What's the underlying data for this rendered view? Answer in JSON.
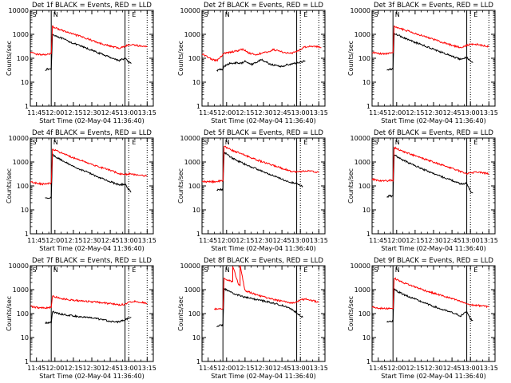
{
  "figure": {
    "x_tick_labels": [
      "11:45",
      "12:00",
      "12:15",
      "12:30",
      "12:45",
      "13:00",
      "13:15"
    ],
    "y_tick_labels": [
      "1",
      "10",
      "100",
      "1000",
      "10000"
    ],
    "ylabel": "Counts/sec",
    "xlabel": "Start Time (02-May-04 11:36:40)",
    "colors": {
      "events": "#000000",
      "lld": "#ff0000"
    }
  },
  "chart_data": [
    {
      "type": "line",
      "title": "Det 1f BLACK = Events, RED = LLD",
      "x_range": [
        "11:40",
        "13:20"
      ],
      "ylim": [
        1,
        10000
      ],
      "yscale": "log",
      "markers": {
        "solid": [
          "11:57",
          "12:57"
        ],
        "dotted": [
          "13:00",
          "13:15"
        ],
        "labels": {
          "S": "11:41",
          "N": "11:58",
          "E": "13:02"
        }
      },
      "series": [
        {
          "name": "BLACK = Events",
          "x": [
            "11:52",
            "11:54",
            "11:57",
            "11:58",
            "12:05",
            "12:15",
            "12:25",
            "12:35",
            "12:45",
            "12:52",
            "12:57",
            "13:00",
            "13:02"
          ],
          "y": [
            33,
            35,
            35,
            1000,
            700,
            420,
            270,
            170,
            110,
            80,
            100,
            70,
            60
          ]
        },
        {
          "name": "RED = LLD",
          "x": [
            "11:40",
            "11:45",
            "11:50",
            "11:55",
            "11:57",
            "11:58",
            "12:05",
            "12:15",
            "12:25",
            "12:35",
            "12:45",
            "12:52",
            "12:57",
            "13:00",
            "13:05",
            "13:10",
            "13:15"
          ],
          "y": [
            170,
            150,
            140,
            150,
            150,
            2100,
            1500,
            1000,
            700,
            450,
            320,
            260,
            320,
            360,
            360,
            320,
            300
          ]
        }
      ]
    },
    {
      "type": "line",
      "title": "Det 2f BLACK = Events, RED = LLD",
      "x_range": [
        "11:40",
        "13:20"
      ],
      "ylim": [
        1,
        10000
      ],
      "yscale": "log",
      "markers": {
        "solid": [
          "11:57",
          "12:57"
        ],
        "dotted": [
          "13:00",
          "13:15"
        ],
        "labels": {
          "S": "11:41",
          "N": "11:58",
          "E": "13:02"
        }
      },
      "series": [
        {
          "name": "BLACK = Events",
          "x": [
            "11:52",
            "11:54",
            "11:57",
            "11:58",
            "12:02",
            "12:08",
            "12:12",
            "12:15",
            "12:20",
            "12:25",
            "12:28",
            "12:32",
            "12:36",
            "12:40",
            "12:45",
            "12:50",
            "12:55",
            "13:00",
            "13:04"
          ],
          "y": [
            30,
            35,
            35,
            45,
            60,
            65,
            60,
            80,
            55,
            70,
            90,
            70,
            55,
            50,
            45,
            55,
            60,
            70,
            75
          ]
        },
        {
          "name": "RED = LLD",
          "x": [
            "11:40",
            "11:44",
            "11:48",
            "11:52",
            "11:56",
            "11:58",
            "12:03",
            "12:08",
            "12:13",
            "12:18",
            "12:23",
            "12:28",
            "12:33",
            "12:38",
            "12:43",
            "12:48",
            "12:53",
            "12:58",
            "13:03",
            "13:08",
            "13:13",
            "13:17"
          ],
          "y": [
            150,
            120,
            90,
            80,
            120,
            160,
            180,
            200,
            240,
            170,
            140,
            160,
            180,
            230,
            200,
            170,
            160,
            200,
            290,
            320,
            310,
            280
          ]
        }
      ]
    },
    {
      "type": "line",
      "title": "Det 3f BLACK = Events, RED = LLD",
      "x_range": [
        "11:40",
        "13:20"
      ],
      "ylim": [
        1,
        10000
      ],
      "yscale": "log",
      "markers": {
        "solid": [
          "11:57",
          "12:57"
        ],
        "dotted": [
          "13:00",
          "13:15"
        ],
        "labels": {
          "S": "11:41",
          "N": "11:58",
          "E": "13:02"
        }
      },
      "series": [
        {
          "name": "BLACK = Events",
          "x": [
            "11:52",
            "11:54",
            "11:57",
            "11:58",
            "12:05",
            "12:15",
            "12:25",
            "12:35",
            "12:45",
            "12:52",
            "12:57",
            "13:00",
            "13:02"
          ],
          "y": [
            33,
            35,
            35,
            1100,
            750,
            460,
            300,
            190,
            120,
            90,
            110,
            75,
            65
          ]
        },
        {
          "name": "RED = LLD",
          "x": [
            "11:40",
            "11:45",
            "11:50",
            "11:55",
            "11:57",
            "11:58",
            "12:05",
            "12:15",
            "12:25",
            "12:35",
            "12:45",
            "12:52",
            "12:57",
            "13:00",
            "13:05",
            "13:10",
            "13:15"
          ],
          "y": [
            180,
            160,
            150,
            160,
            160,
            2200,
            1600,
            1100,
            750,
            500,
            350,
            280,
            340,
            380,
            380,
            340,
            310
          ]
        }
      ]
    },
    {
      "type": "line",
      "title": "Det 4f BLACK = Events, RED = LLD",
      "x_range": [
        "11:40",
        "13:20"
      ],
      "ylim": [
        1,
        10000
      ],
      "yscale": "log",
      "markers": {
        "solid": [
          "11:57",
          "12:57"
        ],
        "dotted": [
          "13:00",
          "13:15"
        ],
        "labels": {
          "S": "11:41",
          "N": "11:58",
          "E": "13:02"
        }
      },
      "series": [
        {
          "name": "BLACK = Events",
          "x": [
            "11:52",
            "11:54",
            "11:57",
            "11:58",
            "12:05",
            "12:15",
            "12:25",
            "12:35",
            "12:45",
            "12:52",
            "12:57",
            "13:00",
            "13:02"
          ],
          "y": [
            30,
            32,
            32,
            2000,
            1200,
            650,
            400,
            240,
            150,
            110,
            120,
            70,
            55
          ]
        },
        {
          "name": "RED = LLD",
          "x": [
            "11:40",
            "11:45",
            "11:50",
            "11:55",
            "11:57",
            "11:58",
            "12:05",
            "12:15",
            "12:25",
            "12:35",
            "12:45",
            "12:52",
            "12:57",
            "13:00",
            "13:05",
            "13:10",
            "13:15"
          ],
          "y": [
            150,
            130,
            120,
            130,
            130,
            3500,
            2400,
            1500,
            1000,
            650,
            450,
            330,
            300,
            320,
            300,
            280,
            260
          ]
        }
      ]
    },
    {
      "type": "line",
      "title": "Det 5f BLACK = Events, RED = LLD",
      "x_range": [
        "11:40",
        "13:20"
      ],
      "ylim": [
        1,
        10000
      ],
      "yscale": "log",
      "markers": {
        "solid": [
          "11:57",
          "12:57"
        ],
        "dotted": [
          "13:00",
          "13:15"
        ],
        "labels": {
          "S": "11:41",
          "N": "11:58",
          "E": "13:02"
        }
      },
      "series": [
        {
          "name": "BLACK = Events",
          "x": [
            "11:52",
            "11:54",
            "11:57",
            "11:58",
            "12:05",
            "12:15",
            "12:25",
            "12:35",
            "12:45",
            "12:52",
            "12:57",
            "13:00",
            "13:02"
          ],
          "y": [
            65,
            70,
            70,
            2500,
            1400,
            800,
            500,
            300,
            190,
            140,
            130,
            100,
            95
          ]
        },
        {
          "name": "RED = LLD",
          "x": [
            "11:40",
            "11:45",
            "11:50",
            "11:55",
            "11:57",
            "11:58",
            "12:05",
            "12:15",
            "12:25",
            "12:35",
            "12:45",
            "12:52",
            "12:57",
            "13:00",
            "13:05",
            "13:10",
            "13:15"
          ],
          "y": [
            150,
            150,
            150,
            160,
            160,
            4500,
            3000,
            1900,
            1200,
            800,
            550,
            420,
            380,
            400,
            430,
            400,
            360
          ]
        }
      ]
    },
    {
      "type": "line",
      "title": "Det 6f BLACK = Events, RED = LLD",
      "x_range": [
        "11:40",
        "13:20"
      ],
      "ylim": [
        1,
        10000
      ],
      "yscale": "log",
      "markers": {
        "solid": [
          "11:57",
          "12:57"
        ],
        "dotted": [
          "13:00",
          "13:15"
        ],
        "labels": {
          "S": "11:41",
          "N": "11:58",
          "E": "13:02"
        }
      },
      "series": [
        {
          "name": "BLACK = Events",
          "x": [
            "11:52",
            "11:54",
            "11:57",
            "11:58",
            "12:05",
            "12:15",
            "12:25",
            "12:35",
            "12:45",
            "12:52",
            "12:57",
            "13:00",
            "13:02"
          ],
          "y": [
            35,
            38,
            38,
            2000,
            1200,
            700,
            420,
            260,
            170,
            120,
            130,
            60,
            50
          ]
        },
        {
          "name": "RED = LLD",
          "x": [
            "11:40",
            "11:45",
            "11:50",
            "11:55",
            "11:57",
            "11:58",
            "12:05",
            "12:15",
            "12:25",
            "12:35",
            "12:45",
            "12:52",
            "12:57",
            "13:00",
            "13:05",
            "13:10",
            "13:15"
          ],
          "y": [
            190,
            170,
            160,
            170,
            170,
            4000,
            2800,
            1800,
            1200,
            800,
            550,
            400,
            330,
            350,
            380,
            360,
            320
          ]
        }
      ]
    },
    {
      "type": "line",
      "title": "Det 7f BLACK = Events, RED = LLD",
      "x_range": [
        "11:40",
        "13:20"
      ],
      "ylim": [
        1,
        10000
      ],
      "yscale": "log",
      "markers": {
        "solid": [
          "11:57",
          "12:57"
        ],
        "dotted": [
          "13:00",
          "13:15"
        ],
        "labels": {
          "S": "11:41",
          "N": "11:58",
          "E": "13:02"
        }
      },
      "series": [
        {
          "name": "BLACK = Events",
          "x": [
            "11:52",
            "11:54",
            "11:57",
            "11:58",
            "12:05",
            "12:15",
            "12:25",
            "12:35",
            "12:45",
            "12:52",
            "12:57",
            "13:00",
            "13:02"
          ],
          "y": [
            40,
            42,
            42,
            120,
            95,
            80,
            70,
            60,
            48,
            45,
            55,
            65,
            70
          ]
        },
        {
          "name": "RED = LLD",
          "x": [
            "11:40",
            "11:45",
            "11:50",
            "11:55",
            "11:57",
            "11:58",
            "12:05",
            "12:15",
            "12:25",
            "12:35",
            "12:45",
            "12:52",
            "12:57",
            "13:00",
            "13:05",
            "13:10",
            "13:15"
          ],
          "y": [
            200,
            180,
            170,
            180,
            180,
            550,
            420,
            360,
            330,
            300,
            260,
            230,
            250,
            300,
            330,
            300,
            260
          ]
        }
      ]
    },
    {
      "type": "line",
      "title": "Det 8f BLACK = Events, RED = LLD",
      "x_range": [
        "11:40",
        "13:20"
      ],
      "ylim": [
        1,
        10000
      ],
      "yscale": "log",
      "markers": {
        "solid": [
          "11:57",
          "12:57"
        ],
        "dotted": [
          "13:00",
          "13:15"
        ],
        "labels": {
          "S": "11:41",
          "N": "11:58",
          "E": "13:02"
        }
      },
      "series": [
        {
          "name": "BLACK = Events",
          "x": [
            "11:52",
            "11:54",
            "11:57",
            "11:58",
            "12:05",
            "12:15",
            "12:25",
            "12:35",
            "12:45",
            "12:52",
            "12:57",
            "13:00",
            "13:02"
          ],
          "y": [
            30,
            32,
            32,
            1100,
            700,
            480,
            380,
            300,
            220,
            160,
            110,
            80,
            70
          ]
        },
        {
          "name": "RED = LLD",
          "x": [
            "11:50",
            "11:55",
            "11:57",
            "11:58",
            "12:04",
            "12:05",
            "12:05",
            "12:10",
            "12:11",
            "12:11",
            "12:15",
            "12:25",
            "12:35",
            "12:45",
            "12:52",
            "12:57",
            "13:00",
            "13:05",
            "13:10",
            "13:15"
          ],
          "y": [
            160,
            160,
            160,
            2800,
            2200,
            2200,
            10000,
            1500,
            1500,
            10000,
            900,
            600,
            420,
            330,
            280,
            300,
            380,
            400,
            350,
            300
          ]
        }
      ]
    },
    {
      "type": "line",
      "title": "Det 9f BLACK = Events, RED = LLD",
      "x_range": [
        "11:40",
        "13:20"
      ],
      "ylim": [
        1,
        10000
      ],
      "yscale": "log",
      "markers": {
        "solid": [
          "11:57",
          "12:57"
        ],
        "dotted": [
          "13:00",
          "13:15"
        ],
        "labels": {
          "S": "11:41",
          "N": "11:58",
          "E": "13:02"
        }
      },
      "series": [
        {
          "name": "BLACK = Events",
          "x": [
            "11:52",
            "11:54",
            "11:57",
            "11:58",
            "12:05",
            "12:15",
            "12:25",
            "12:35",
            "12:45",
            "12:52",
            "12:57",
            "13:00",
            "13:02"
          ],
          "y": [
            45,
            48,
            48,
            1000,
            650,
            400,
            250,
            160,
            110,
            80,
            120,
            60,
            50
          ]
        },
        {
          "name": "RED = LLD",
          "x": [
            "11:40",
            "11:45",
            "11:50",
            "11:55",
            "11:57",
            "11:58",
            "12:05",
            "12:15",
            "12:25",
            "12:35",
            "12:45",
            "12:52",
            "12:57",
            "13:00",
            "13:05",
            "13:10",
            "13:15"
          ],
          "y": [
            190,
            170,
            160,
            170,
            170,
            3000,
            2000,
            1300,
            850,
            600,
            420,
            320,
            260,
            230,
            220,
            210,
            190
          ]
        }
      ]
    }
  ]
}
